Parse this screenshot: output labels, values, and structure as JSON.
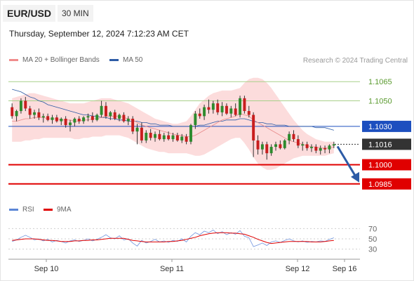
{
  "header": {
    "pair": "EUR/USD",
    "timeframe": "30 MIN",
    "datetime": "Thursday, September 12, 2024 7:12:23 AM CET"
  },
  "legend": {
    "ma20": {
      "label": "MA 20 + Bollinger Bands",
      "color": "#f08c8c"
    },
    "ma50": {
      "label": "MA 50",
      "color": "#2d5ba6"
    },
    "rsi": {
      "label": "RSI",
      "color": "#5b86d6"
    },
    "ma9": {
      "label": "9MA",
      "color": "#e00000"
    }
  },
  "credit": "Research © 2024 Trading Central",
  "chart_data": {
    "type": "candlestick",
    "x_labels": [
      "Sep 10",
      "Sep 11",
      "Sep 12",
      "Sep 16"
    ],
    "price_axis": {
      "ylim": [
        1.0975,
        1.1075
      ]
    },
    "levels": [
      {
        "value": 1.1065,
        "label": "1.1065",
        "kind": "resistance",
        "color": "#a8d08a"
      },
      {
        "value": 1.105,
        "label": "1.1050",
        "kind": "resistance",
        "color": "#a8d08a"
      },
      {
        "value": 1.103,
        "label": "1.1030",
        "kind": "pivot",
        "color": "#1d4fbf"
      },
      {
        "value": 1.1016,
        "label": "1.1016",
        "kind": "last",
        "color": "#333333"
      },
      {
        "value": 1.1,
        "label": "1.1000",
        "kind": "support",
        "color": "#e00000"
      },
      {
        "value": 1.0985,
        "label": "1.0985",
        "kind": "support",
        "color": "#e00000"
      }
    ],
    "arrow": {
      "from": 1.1016,
      "to": 1.0985,
      "direction": "down",
      "color": "#2d5ba6"
    },
    "candles": [
      [
        1.1045,
        1.1048,
        1.1036,
        1.1038
      ],
      [
        1.1038,
        1.1043,
        1.1034,
        1.1042
      ],
      [
        1.1042,
        1.1052,
        1.104,
        1.105
      ],
      [
        1.105,
        1.1053,
        1.1042,
        1.1044
      ],
      [
        1.1044,
        1.1046,
        1.1036,
        1.1039
      ],
      [
        1.1039,
        1.1043,
        1.1036,
        1.1041
      ],
      [
        1.1041,
        1.1044,
        1.1035,
        1.1037
      ],
      [
        1.1037,
        1.104,
        1.1033,
        1.1038
      ],
      [
        1.1038,
        1.104,
        1.1034,
        1.1035
      ],
      [
        1.1035,
        1.1039,
        1.1032,
        1.1037
      ],
      [
        1.1037,
        1.1039,
        1.1033,
        1.1034
      ],
      [
        1.1034,
        1.1037,
        1.1031,
        1.1036
      ],
      [
        1.1036,
        1.1038,
        1.1029,
        1.1031
      ],
      [
        1.1031,
        1.1035,
        1.1026,
        1.1033
      ],
      [
        1.1033,
        1.1037,
        1.103,
        1.1036
      ],
      [
        1.1036,
        1.1038,
        1.1032,
        1.1034
      ],
      [
        1.1034,
        1.1038,
        1.1032,
        1.1037
      ],
      [
        1.1037,
        1.104,
        1.1034,
        1.1038
      ],
      [
        1.1038,
        1.1041,
        1.1033,
        1.1035
      ],
      [
        1.1035,
        1.104,
        1.1034,
        1.1039
      ],
      [
        1.1039,
        1.105,
        1.1037,
        1.1046
      ],
      [
        1.1046,
        1.1049,
        1.1036,
        1.1038
      ],
      [
        1.1038,
        1.1042,
        1.1035,
        1.1041
      ],
      [
        1.1041,
        1.1043,
        1.1035,
        1.1036
      ],
      [
        1.1036,
        1.104,
        1.1034,
        1.1039
      ],
      [
        1.1039,
        1.1041,
        1.1033,
        1.1034
      ],
      [
        1.1034,
        1.1038,
        1.1031,
        1.1036
      ],
      [
        1.1036,
        1.1038,
        1.1024,
        1.1026
      ],
      [
        1.1026,
        1.1032,
        1.1016,
        1.1029
      ],
      [
        1.1029,
        1.1033,
        1.1017,
        1.1019
      ],
      [
        1.1019,
        1.1027,
        1.1017,
        1.1025
      ],
      [
        1.1025,
        1.1028,
        1.1019,
        1.1021
      ],
      [
        1.1021,
        1.1026,
        1.1018,
        1.1024
      ],
      [
        1.1024,
        1.1027,
        1.1019,
        1.102
      ],
      [
        1.102,
        1.1025,
        1.1018,
        1.1023
      ],
      [
        1.1023,
        1.1026,
        1.1019,
        1.102
      ],
      [
        1.102,
        1.1025,
        1.1018,
        1.1023
      ],
      [
        1.1023,
        1.1025,
        1.1018,
        1.1019
      ],
      [
        1.1019,
        1.1024,
        1.1017,
        1.1022
      ],
      [
        1.1022,
        1.1024,
        1.1016,
        1.1018
      ],
      [
        1.1018,
        1.1032,
        1.1016,
        1.1031
      ],
      [
        1.1031,
        1.1042,
        1.1028,
        1.104
      ],
      [
        1.104,
        1.1044,
        1.1036,
        1.1038
      ],
      [
        1.1038,
        1.1047,
        1.1035,
        1.1045
      ],
      [
        1.1045,
        1.1051,
        1.104,
        1.1043
      ],
      [
        1.1043,
        1.105,
        1.104,
        1.1048
      ],
      [
        1.1048,
        1.1051,
        1.1039,
        1.1041
      ],
      [
        1.1041,
        1.1049,
        1.1038,
        1.1046
      ],
      [
        1.1046,
        1.1048,
        1.1039,
        1.104
      ],
      [
        1.104,
        1.1046,
        1.1037,
        1.1044
      ],
      [
        1.1044,
        1.1048,
        1.1038,
        1.1039
      ],
      [
        1.1039,
        1.1054,
        1.1037,
        1.1052
      ],
      [
        1.1052,
        1.1054,
        1.104,
        1.1042
      ],
      [
        1.1042,
        1.1046,
        1.1037,
        1.1039
      ],
      [
        1.1039,
        1.1041,
        1.1006,
        1.1019
      ],
      [
        1.1019,
        1.1023,
        1.1008,
        1.1012
      ],
      [
        1.1012,
        1.1018,
        1.1008,
        1.1016
      ],
      [
        1.1016,
        1.1018,
        1.1004,
        1.1009
      ],
      [
        1.1009,
        1.1016,
        1.1007,
        1.1014
      ],
      [
        1.1014,
        1.1018,
        1.1011,
        1.1016
      ],
      [
        1.1016,
        1.1019,
        1.1012,
        1.1013
      ],
      [
        1.1013,
        1.102,
        1.1012,
        1.1019
      ],
      [
        1.1019,
        1.1026,
        1.1016,
        1.1024
      ],
      [
        1.1024,
        1.1027,
        1.1018,
        1.102
      ],
      [
        1.102,
        1.1023,
        1.1013,
        1.1015
      ],
      [
        1.1015,
        1.1018,
        1.1011,
        1.1016
      ],
      [
        1.1016,
        1.1018,
        1.1011,
        1.1013
      ],
      [
        1.1013,
        1.1016,
        1.101,
        1.1014
      ],
      [
        1.1014,
        1.1016,
        1.1009,
        1.1011
      ],
      [
        1.1011,
        1.1015,
        1.1008,
        1.1013
      ],
      [
        1.1013,
        1.1015,
        1.1009,
        1.1012
      ],
      [
        1.1012,
        1.1016,
        1.1009,
        1.1015
      ],
      [
        1.1015,
        1.1018,
        1.1013,
        1.1016
      ]
    ],
    "ma20": [
      1.1034,
      1.1034,
      1.1035,
      1.1036,
      1.1036,
      1.1037,
      1.1037,
      1.1037,
      1.1036,
      1.1036,
      1.1036,
      1.1035,
      1.1035,
      1.1035,
      1.1034,
      1.1034,
      1.1035,
      1.1035,
      1.1036,
      1.1036,
      1.1037,
      1.1038,
      1.1038,
      1.1038,
      1.1038,
      1.1037,
      1.1036,
      1.1035,
      1.1033,
      1.1031,
      1.103,
      1.1029,
      1.1028,
      1.1027,
      1.1026,
      1.1025,
      1.1024,
      1.1023,
      1.1023,
      1.1022,
      1.1022,
      1.1023,
      1.1025,
      1.1027,
      1.1029,
      1.1031,
      1.1033,
      1.1035,
      1.1036,
      1.1037,
      1.1038,
      1.104,
      1.1039,
      1.1038,
      1.1035,
      1.1033,
      1.1031,
      1.1029,
      1.1027,
      1.1025,
      1.1023,
      1.1021,
      1.1019,
      1.1018,
      1.1017,
      1.1016,
      1.1015,
      1.1014,
      1.1014,
      1.1013,
      1.1013,
      1.1013,
      1.1014
    ],
    "bb_upper": [
      1.1052,
      1.1053,
      1.1054,
      1.1055,
      1.1056,
      1.1056,
      1.1055,
      1.1054,
      1.1053,
      1.1052,
      1.1051,
      1.105,
      1.1049,
      1.1048,
      1.1048,
      1.1048,
      1.1048,
      1.1049,
      1.105,
      1.1051,
      1.1052,
      1.1052,
      1.1052,
      1.1051,
      1.105,
      1.1049,
      1.1048,
      1.1046,
      1.1044,
      1.1042,
      1.104,
      1.1038,
      1.1036,
      1.1035,
      1.1034,
      1.1033,
      1.1032,
      1.1032,
      1.1033,
      1.1034,
      1.1038,
      1.1043,
      1.1048,
      1.1051,
      1.1054,
      1.1056,
      1.1057,
      1.1058,
      1.1058,
      1.1058,
      1.1059,
      1.106,
      1.1064,
      1.1067,
      1.1068,
      1.1068,
      1.1067,
      1.1064,
      1.106,
      1.1055,
      1.105,
      1.1045,
      1.104,
      1.1035,
      1.1031,
      1.1027,
      1.1024,
      1.1022,
      1.102,
      1.1019,
      1.1018,
      1.1018,
      1.1018
    ],
    "bb_lower": [
      1.1018,
      1.1018,
      1.1018,
      1.1019,
      1.1019,
      1.102,
      1.102,
      1.1021,
      1.1021,
      1.1021,
      1.1021,
      1.1021,
      1.1021,
      1.1021,
      1.102,
      1.102,
      1.1021,
      1.1021,
      1.1022,
      1.1022,
      1.1022,
      1.1023,
      1.1023,
      1.1023,
      1.1023,
      1.1022,
      1.1021,
      1.1019,
      1.1017,
      1.1015,
      1.1013,
      1.1012,
      1.1011,
      1.101,
      1.101,
      1.1009,
      1.1009,
      1.1009,
      1.1009,
      1.1009,
      1.1008,
      1.1007,
      1.1007,
      1.1008,
      1.101,
      1.1012,
      1.1014,
      1.1016,
      1.1018,
      1.102,
      1.1021,
      1.1021,
      1.1017,
      1.1012,
      1.1006,
      1.1001,
      1.0998,
      1.0996,
      1.0996,
      1.0997,
      1.0999,
      1.1001,
      1.1003,
      1.1005,
      1.1006,
      1.1007,
      1.1007,
      1.1007,
      1.1007,
      1.1007,
      1.1007,
      1.1008,
      1.1009
    ],
    "ma50": [
      1.1059,
      1.1058,
      1.1057,
      1.1055,
      1.1053,
      1.1052,
      1.105,
      1.1049,
      1.1047,
      1.1046,
      1.1045,
      1.1044,
      1.1043,
      1.1042,
      1.1041,
      1.104,
      1.1039,
      1.1039,
      1.1038,
      1.1038,
      1.1037,
      1.1037,
      1.1036,
      1.1036,
      1.1035,
      1.1035,
      1.1034,
      1.1034,
      1.1034,
      1.1033,
      1.1033,
      1.1032,
      1.1032,
      1.1031,
      1.1031,
      1.1031,
      1.103,
      1.103,
      1.103,
      1.103,
      1.103,
      1.103,
      1.1031,
      1.1031,
      1.1032,
      1.1033,
      1.1034,
      1.1034,
      1.1035,
      1.1035,
      1.1035,
      1.1036,
      1.1036,
      1.1035,
      1.1034,
      1.1033,
      1.1033,
      1.1032,
      1.1032,
      1.1031,
      1.1031,
      1.1031,
      1.103,
      1.103,
      1.103,
      1.103,
      1.103,
      1.103,
      1.1029,
      1.1029,
      1.1029,
      1.1028,
      1.1027
    ],
    "rsi": {
      "ylim": [
        20,
        80
      ],
      "ticks": [
        70,
        50,
        30
      ],
      "values": [
        45,
        48,
        53,
        57,
        53,
        48,
        50,
        46,
        49,
        44,
        47,
        45,
        42,
        46,
        48,
        45,
        47,
        50,
        46,
        49,
        53,
        58,
        52,
        50,
        56,
        48,
        50,
        42,
        36,
        47,
        42,
        45,
        49,
        44,
        46,
        43,
        47,
        45,
        50,
        44,
        55,
        62,
        58,
        65,
        62,
        67,
        60,
        64,
        58,
        62,
        59,
        66,
        55,
        52,
        35,
        38,
        42,
        37,
        44,
        46,
        43,
        47,
        50,
        46,
        44,
        46,
        43,
        45,
        44,
        46,
        45,
        49,
        52
      ],
      "ma9": [
        47,
        48,
        49,
        50,
        50,
        50,
        49,
        48,
        47,
        47,
        46,
        45,
        45,
        45,
        46,
        46,
        47,
        47,
        48,
        48,
        49,
        50,
        51,
        51,
        51,
        51,
        49,
        47,
        46,
        45,
        44,
        44,
        44,
        44,
        44,
        45,
        45,
        46,
        47,
        49,
        51,
        53,
        56,
        58,
        60,
        61,
        62,
        62,
        62,
        61,
        61,
        60,
        59,
        56,
        53,
        49,
        46,
        43,
        41,
        42,
        43,
        44,
        45,
        45,
        45,
        45,
        45,
        44,
        44,
        44,
        45,
        46,
        47
      ]
    }
  }
}
